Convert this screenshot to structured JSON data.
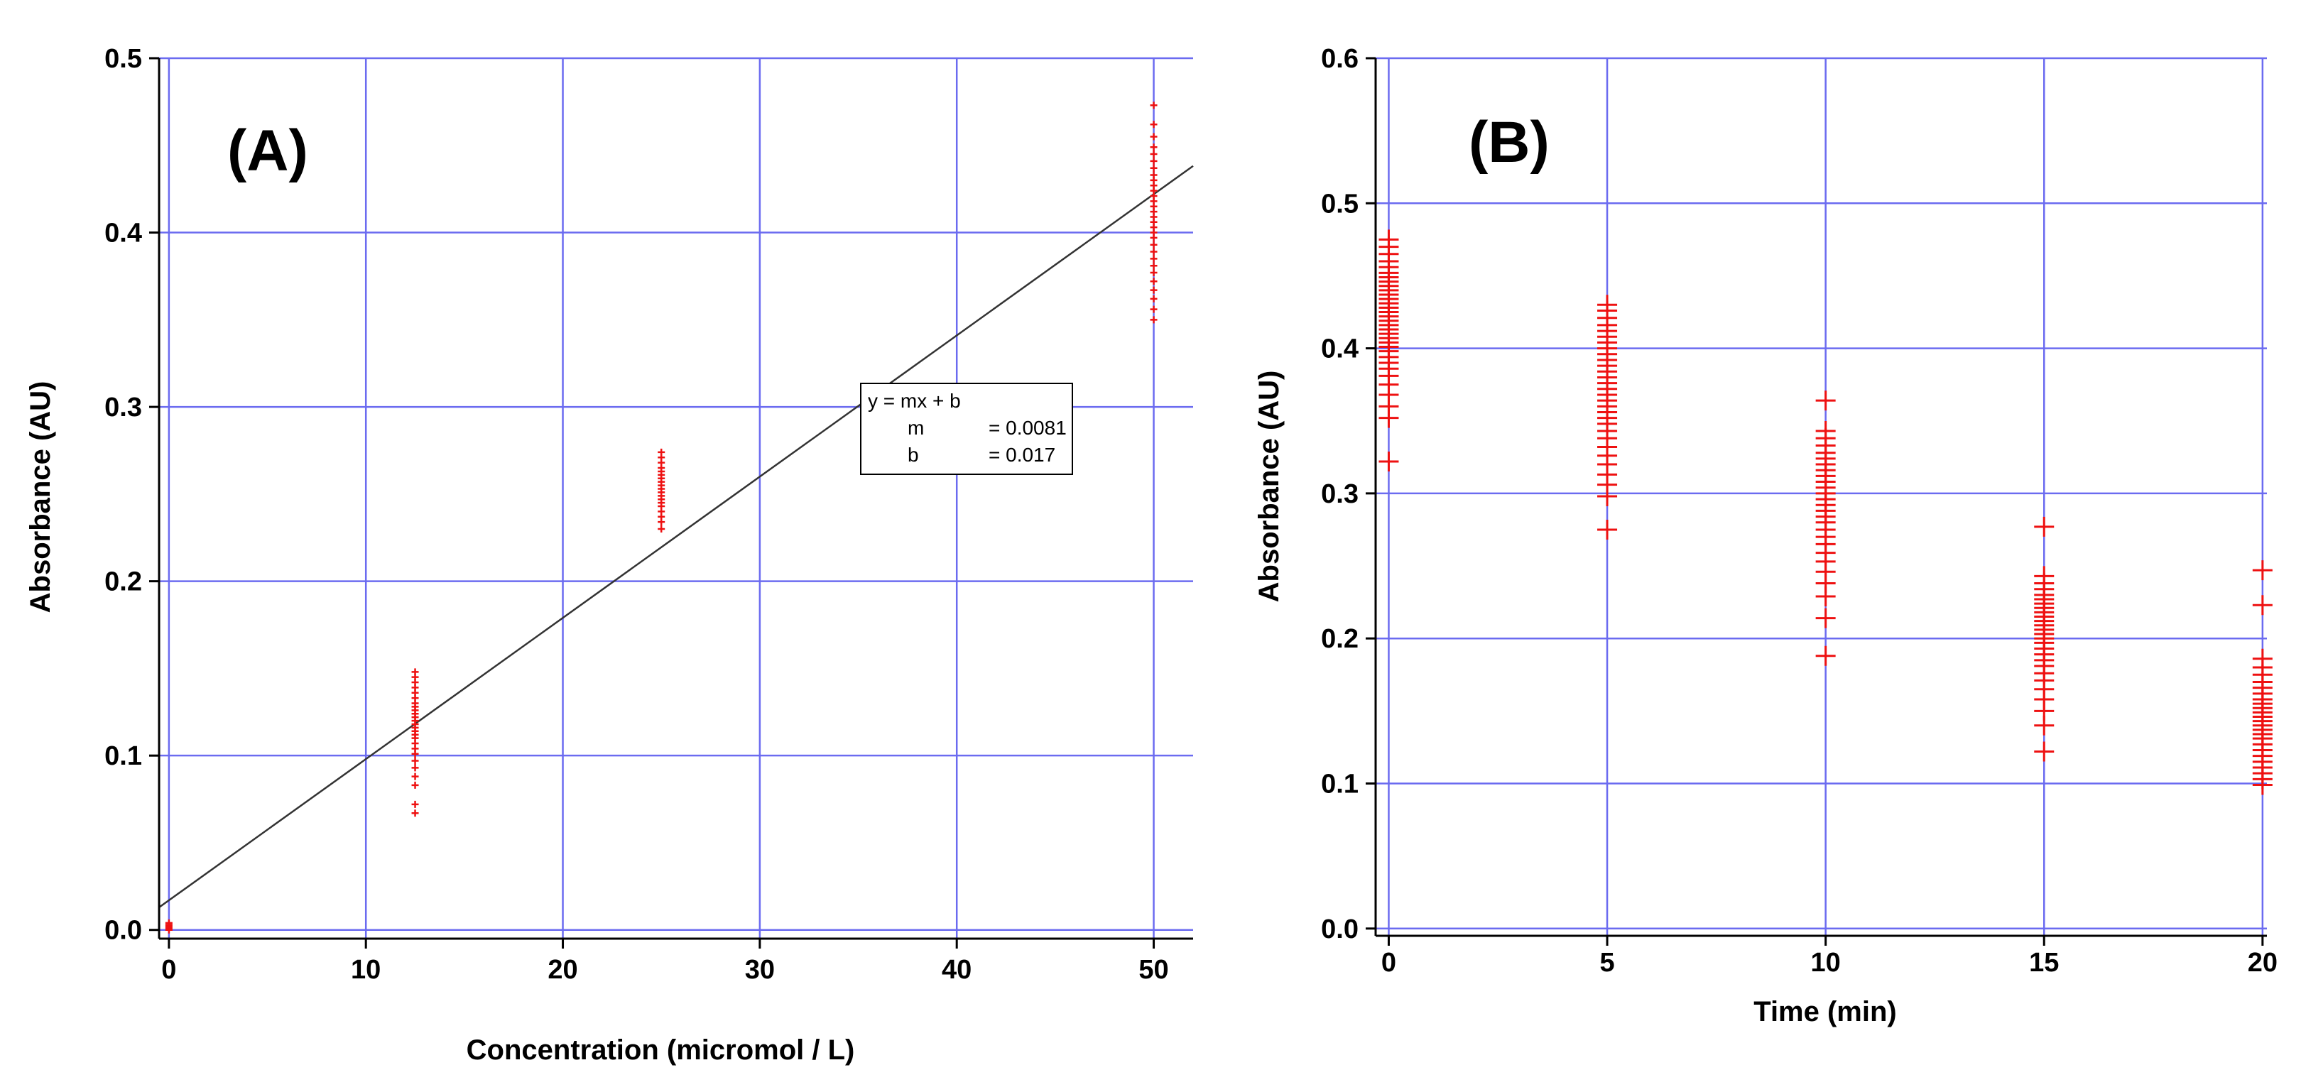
{
  "colors": {
    "grid": "#6b6bf0",
    "marker": "#ee1111",
    "fit_line": "#333333",
    "axis": "#000000"
  },
  "chart_data": [
    {
      "panel": "(A)",
      "type": "scatter",
      "title": "",
      "xlabel": "Concentration (micromol / L)",
      "ylabel": "Absorbance (AU)",
      "xlim": [
        -0.5,
        52
      ],
      "ylim": [
        -0.005,
        0.5
      ],
      "xticks": [
        0,
        10,
        20,
        30,
        40,
        50
      ],
      "yticks": [
        0.0,
        0.1,
        0.2,
        0.3,
        0.4,
        0.5
      ],
      "xtick_labels": [
        "0",
        "10",
        "20",
        "30",
        "40",
        "50"
      ],
      "ytick_labels": [
        "0.0",
        "0.1",
        "0.2",
        "0.3",
        "0.4",
        "0.5"
      ],
      "grid": true,
      "marker": "small-plus",
      "groups": [
        {
          "x": 0,
          "y": [
            0.0,
            0.001,
            0.002,
            0.003,
            0.004
          ]
        },
        {
          "x": 12.5,
          "y": [
            0.067,
            0.072,
            0.083,
            0.088,
            0.093,
            0.097,
            0.101,
            0.104,
            0.107,
            0.11,
            0.112,
            0.114,
            0.116,
            0.118,
            0.12,
            0.122,
            0.124,
            0.126,
            0.128,
            0.13,
            0.133,
            0.136,
            0.139,
            0.142,
            0.145,
            0.148
          ]
        },
        {
          "x": 25,
          "y": [
            0.23,
            0.234,
            0.237,
            0.24,
            0.243,
            0.245,
            0.247,
            0.249,
            0.251,
            0.253,
            0.255,
            0.257,
            0.259,
            0.261,
            0.263,
            0.265,
            0.268,
            0.271,
            0.274
          ]
        },
        {
          "x": 50,
          "y": [
            0.35,
            0.356,
            0.362,
            0.367,
            0.372,
            0.377,
            0.381,
            0.385,
            0.389,
            0.393,
            0.397,
            0.4,
            0.403,
            0.406,
            0.409,
            0.412,
            0.415,
            0.418,
            0.421,
            0.424,
            0.427,
            0.43,
            0.433,
            0.437,
            0.441,
            0.445,
            0.449,
            0.455,
            0.462,
            0.473
          ]
        }
      ],
      "fit": {
        "m": 0.0081,
        "b": 0.017,
        "x_range": [
          -0.5,
          52
        ]
      },
      "legend": {
        "equation": "y = mx + b",
        "m_label": "m",
        "m_value": "= 0.0081",
        "b_label": "b",
        "b_value": "= 0.017",
        "placement": "center-right"
      }
    },
    {
      "panel": "(B)",
      "type": "scatter",
      "title": "",
      "xlabel": "Time (min)",
      "ylabel": "Absorbance (AU)",
      "xlim": [
        -0.3,
        20.1
      ],
      "ylim": [
        -0.005,
        0.6
      ],
      "xticks": [
        0,
        5,
        10,
        15,
        20
      ],
      "yticks": [
        0.0,
        0.1,
        0.2,
        0.3,
        0.4,
        0.5,
        0.6
      ],
      "xtick_labels": [
        "0",
        "5",
        "10",
        "15",
        "20"
      ],
      "ytick_labels": [
        "0.0",
        "0.1",
        "0.2",
        "0.3",
        "0.4",
        "0.5",
        "0.6"
      ],
      "grid": true,
      "marker": "plus",
      "groups": [
        {
          "x": 0,
          "y": [
            0.322,
            0.352,
            0.36,
            0.368,
            0.375,
            0.381,
            0.386,
            0.39,
            0.394,
            0.398,
            0.401,
            0.404,
            0.407,
            0.41,
            0.413,
            0.416,
            0.419,
            0.422,
            0.425,
            0.428,
            0.431,
            0.434,
            0.437,
            0.44,
            0.443,
            0.446,
            0.449,
            0.452,
            0.456,
            0.46,
            0.465,
            0.47,
            0.475
          ]
        },
        {
          "x": 5,
          "y": [
            0.275,
            0.298,
            0.306,
            0.313,
            0.32,
            0.326,
            0.332,
            0.338,
            0.343,
            0.348,
            0.352,
            0.356,
            0.36,
            0.364,
            0.368,
            0.372,
            0.376,
            0.38,
            0.384,
            0.388,
            0.392,
            0.396,
            0.4,
            0.404,
            0.408,
            0.412,
            0.416,
            0.421,
            0.426,
            0.43
          ]
        },
        {
          "x": 10,
          "y": [
            0.188,
            0.214,
            0.229,
            0.238,
            0.246,
            0.253,
            0.259,
            0.265,
            0.27,
            0.275,
            0.28,
            0.284,
            0.288,
            0.292,
            0.296,
            0.3,
            0.304,
            0.308,
            0.312,
            0.316,
            0.32,
            0.324,
            0.328,
            0.333,
            0.338,
            0.343,
            0.364
          ]
        },
        {
          "x": 15,
          "y": [
            0.122,
            0.14,
            0.15,
            0.158,
            0.165,
            0.171,
            0.176,
            0.181,
            0.185,
            0.189,
            0.193,
            0.197,
            0.2,
            0.203,
            0.206,
            0.209,
            0.212,
            0.215,
            0.218,
            0.221,
            0.224,
            0.227,
            0.23,
            0.234,
            0.238,
            0.243,
            0.277
          ]
        },
        {
          "x": 20,
          "y": [
            0.099,
            0.103,
            0.107,
            0.111,
            0.115,
            0.119,
            0.123,
            0.127,
            0.131,
            0.134,
            0.137,
            0.14,
            0.143,
            0.146,
            0.149,
            0.152,
            0.155,
            0.158,
            0.162,
            0.166,
            0.17,
            0.175,
            0.18,
            0.186,
            0.223,
            0.247
          ]
        }
      ]
    }
  ]
}
